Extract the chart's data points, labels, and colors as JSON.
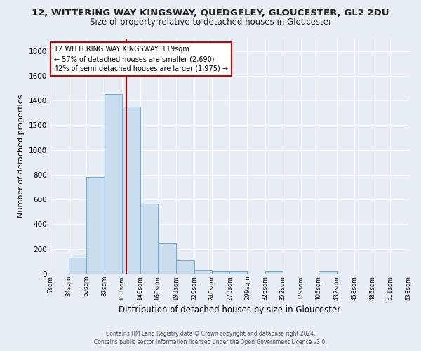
{
  "title_line1": "12, WITTERING WAY KINGSWAY, QUEDGELEY, GLOUCESTER, GL2 2DU",
  "title_line2": "Size of property relative to detached houses in Gloucester",
  "xlabel": "Distribution of detached houses by size in Gloucester",
  "ylabel": "Number of detached properties",
  "bin_edges": [
    7,
    34,
    60,
    87,
    113,
    140,
    166,
    193,
    220,
    246,
    273,
    299,
    326,
    352,
    379,
    405,
    432,
    458,
    485,
    511,
    538
  ],
  "bin_heights": [
    0,
    130,
    780,
    1450,
    1350,
    570,
    250,
    105,
    30,
    20,
    20,
    0,
    20,
    0,
    0,
    20,
    0,
    0,
    0,
    0
  ],
  "bar_color": "#c9ddef",
  "bar_edge_color": "#6aaad4",
  "vline_x": 119,
  "vline_color": "#aa0000",
  "annotation_text": "12 WITTERING WAY KINGSWAY: 119sqm\n← 57% of detached houses are smaller (2,690)\n42% of semi-detached houses are larger (1,975) →",
  "annotation_box_color": "white",
  "annotation_box_edge": "#cc0000",
  "ylim": [
    0,
    1900
  ],
  "yticks": [
    0,
    200,
    400,
    600,
    800,
    1000,
    1200,
    1400,
    1600,
    1800
  ],
  "tick_labels": [
    "7sqm",
    "34sqm",
    "60sqm",
    "87sqm",
    "113sqm",
    "140sqm",
    "166sqm",
    "193sqm",
    "220sqm",
    "246sqm",
    "273sqm",
    "299sqm",
    "326sqm",
    "352sqm",
    "379sqm",
    "405sqm",
    "432sqm",
    "458sqm",
    "485sqm",
    "511sqm",
    "538sqm"
  ],
  "footer_line1": "Contains HM Land Registry data © Crown copyright and database right 2024.",
  "footer_line2": "Contains public sector information licensed under the Open Government Licence v3.0.",
  "bg_color": "#e8eef5",
  "plot_bg_color": "#e8eef5",
  "grid_color": "#ffffff",
  "title1_fontsize": 9.5,
  "title2_fontsize": 8.5
}
